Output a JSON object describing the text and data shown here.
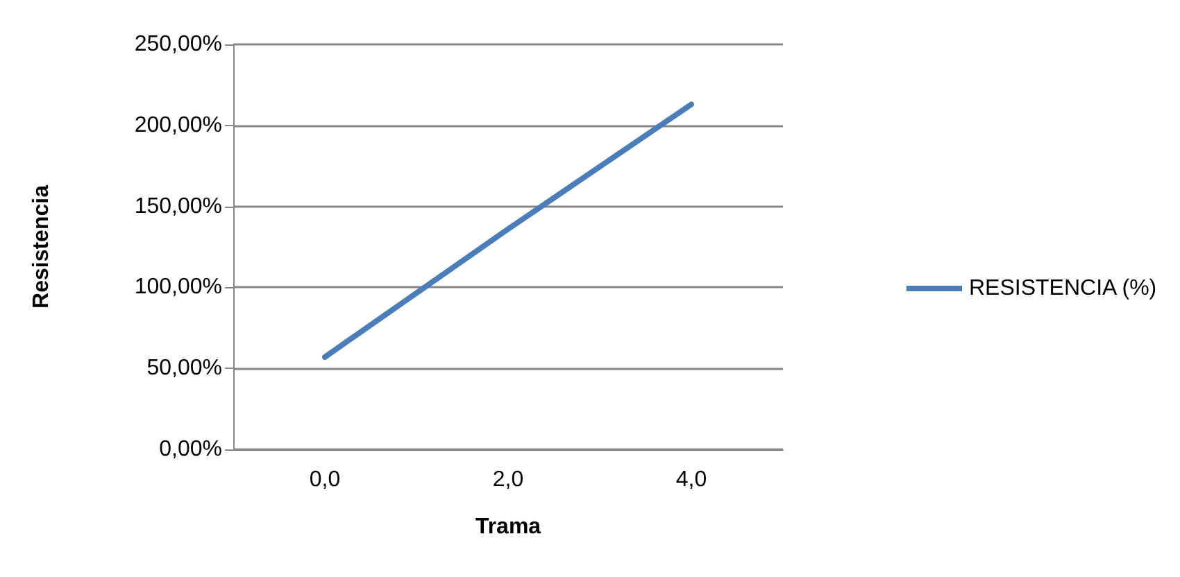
{
  "chart_data": {
    "type": "line",
    "xlabel": "Trama",
    "ylabel": "Resistencia",
    "categories": [
      "0,0",
      "2,0",
      "4,0"
    ],
    "series": [
      {
        "name": "RESISTENCIA (%)",
        "color": "#4a7ebb",
        "values": [
          57,
          136,
          213
        ]
      }
    ],
    "ylim": [
      0,
      250
    ],
    "yticks": [
      {
        "value": 0,
        "label": "0,00%"
      },
      {
        "value": 50,
        "label": "50,00%"
      },
      {
        "value": 100,
        "label": "100,00%"
      },
      {
        "value": 150,
        "label": "150,00%"
      },
      {
        "value": 200,
        "label": "200,00%"
      },
      {
        "value": 250,
        "label": "250,00%"
      }
    ],
    "grid": "y",
    "legend": "right",
    "marker": "none",
    "line_style": "solid"
  }
}
